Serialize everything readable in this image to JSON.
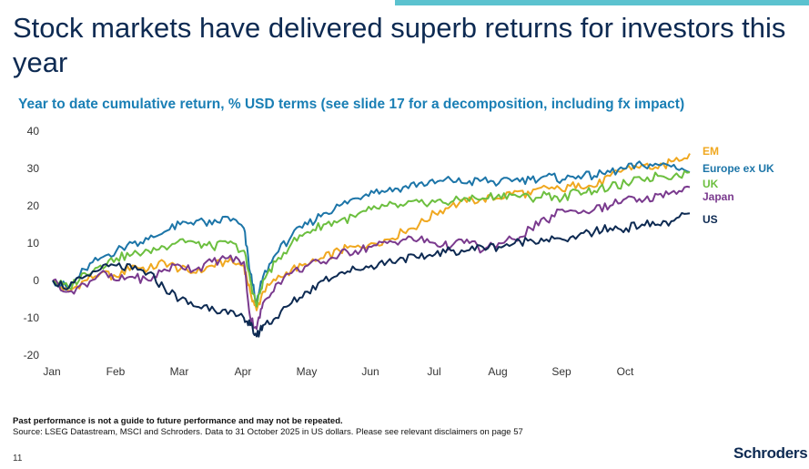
{
  "header": {
    "title": "Stock markets have delivered superb returns for investors this year",
    "subtitle": "Year to date cumulative return, % USD terms (see slide 17 for a decomposition, including fx impact)"
  },
  "footer": {
    "disclaimer": "Past performance is not a guide to future performance and may not be repeated.",
    "source": "Source: LSEG Datastream, MSCI and Schroders. Data to 31 October 2025 in US dollars. Please see relevant disclaimers on page 57",
    "page_number": "11",
    "logo_text": "Schroders"
  },
  "chart_data": {
    "type": "line",
    "title": "Year to date cumulative return, % USD terms",
    "xlabel": "",
    "ylabel": "",
    "ylim": [
      -20,
      40
    ],
    "yticks": [
      -20,
      -10,
      0,
      10,
      20,
      30,
      40
    ],
    "xlim": [
      0,
      10
    ],
    "x_tick_labels": [
      "Jan",
      "Feb",
      "Mar",
      "Apr",
      "May",
      "Jun",
      "Jul",
      "Aug",
      "Sep",
      "Oct"
    ],
    "x_unit": "months since 1 Jan 2025",
    "grid": false,
    "legend_position": "right",
    "x": [
      0,
      0.25,
      0.5,
      0.75,
      1.0,
      1.25,
      1.5,
      1.75,
      2.0,
      2.25,
      2.5,
      2.75,
      3.0,
      3.1,
      3.2,
      3.3,
      3.5,
      3.75,
      4.0,
      4.25,
      4.5,
      4.75,
      5.0,
      5.25,
      5.5,
      5.75,
      6.0,
      6.25,
      6.5,
      6.75,
      7.0,
      7.25,
      7.5,
      7.75,
      8.0,
      8.25,
      8.5,
      8.75,
      9.0,
      9.25,
      9.5,
      9.75,
      10.0
    ],
    "series": [
      {
        "name": "EM",
        "color": "#f0a820",
        "values": [
          0,
          -3,
          0,
          2,
          1,
          4,
          3,
          5,
          3,
          2,
          4,
          5,
          4,
          -3,
          -8,
          -3,
          0,
          3,
          4,
          6,
          8,
          9,
          10,
          11,
          13,
          15,
          18,
          20,
          21,
          22,
          22,
          24,
          23,
          25,
          24,
          26,
          25,
          28,
          30,
          31,
          30,
          32,
          34
        ]
      },
      {
        "name": "Europe ex UK",
        "color": "#1c75a8",
        "values": [
          0,
          -2,
          3,
          6,
          8,
          10,
          11,
          13,
          15,
          16,
          15,
          17,
          14,
          2,
          -6,
          1,
          7,
          12,
          15,
          18,
          20,
          22,
          24,
          24,
          25,
          26,
          26,
          27,
          26,
          27,
          26,
          27,
          27,
          28,
          27,
          28,
          28,
          29,
          30,
          31,
          31,
          31,
          29
        ]
      },
      {
        "name": "UK",
        "color": "#6cbf3f",
        "values": [
          0,
          -2,
          2,
          4,
          6,
          7,
          8,
          9,
          11,
          10,
          9,
          10,
          8,
          0,
          -7,
          0,
          5,
          10,
          13,
          15,
          16,
          17,
          19,
          20,
          20,
          21,
          21,
          21,
          22,
          22,
          23,
          23,
          22,
          23,
          22,
          24,
          24,
          25,
          26,
          27,
          28,
          28,
          29
        ]
      },
      {
        "name": "Japan",
        "color": "#7a3a8e",
        "values": [
          0,
          -3,
          -1,
          2,
          0,
          1,
          0,
          3,
          4,
          3,
          5,
          6,
          5,
          -10,
          -13,
          -6,
          -1,
          2,
          4,
          5,
          7,
          8,
          9,
          10,
          11,
          11,
          10,
          9,
          11,
          8,
          10,
          11,
          14,
          16,
          19,
          18,
          19,
          20,
          22,
          21,
          23,
          24,
          25
        ]
      },
      {
        "name": "US",
        "color": "#0d2a52",
        "values": [
          0,
          -2,
          1,
          3,
          4,
          3,
          2,
          -2,
          -5,
          -7,
          -7,
          -9,
          -10,
          -12,
          -15,
          -12,
          -10,
          -6,
          -3,
          0,
          2,
          3,
          4,
          5,
          6,
          6,
          7,
          8,
          8,
          9,
          9,
          10,
          11,
          11,
          11,
          12,
          13,
          14,
          14,
          15,
          15,
          16,
          18
        ]
      }
    ]
  }
}
